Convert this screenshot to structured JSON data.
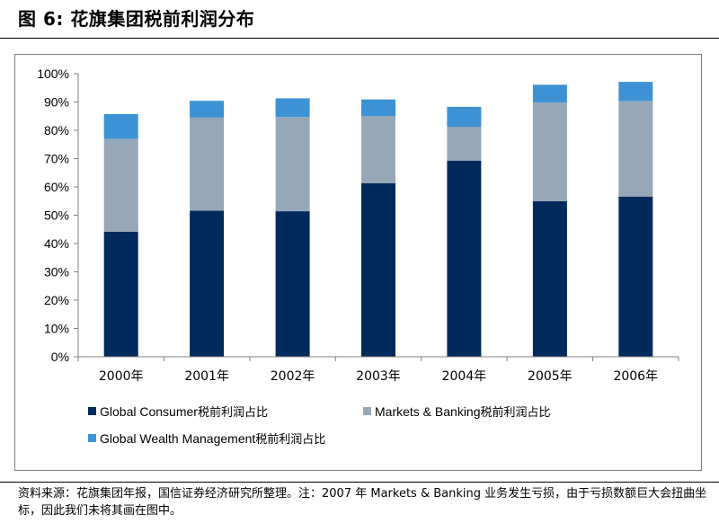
{
  "figure": {
    "title": "图 6:  花旗集团税前利润分布",
    "source": "资料来源：花旗集团年报，国信证券经济研究所整理。注：2007 年 Markets & Banking 业务发生亏损，由于亏损数额巨大会扭曲坐标，因此我们未将其画在图中。"
  },
  "legend": [
    {
      "label": "Global Consumer",
      "suffix": "税前利润占比",
      "color": "#002a5c"
    },
    {
      "label": "Markets & Banking",
      "suffix": "税前利润占比",
      "color": "#96a7b8"
    },
    {
      "label": "Global Wealth Management",
      "suffix": "税前利润占比",
      "color": "#3d92d4"
    }
  ],
  "chart_data": {
    "type": "bar",
    "stacked": true,
    "categories": [
      "2000年",
      "2001年",
      "2002年",
      "2003年",
      "2004年",
      "2005年",
      "2006年"
    ],
    "series": [
      {
        "name": "Global Consumer税前利润占比",
        "color": "#002a5c",
        "values": [
          44.2,
          51.6,
          51.4,
          61.3,
          69.3,
          55.0,
          56.6
        ]
      },
      {
        "name": "Markets & Banking税前利润占比",
        "color": "#96a7b8",
        "values": [
          32.8,
          32.9,
          33.3,
          23.7,
          12.0,
          34.8,
          33.7
        ]
      },
      {
        "name": "Global Wealth Management税前利润占比",
        "color": "#3d92d4",
        "values": [
          8.7,
          5.9,
          6.6,
          5.9,
          7.0,
          6.3,
          6.8
        ]
      }
    ],
    "yticks": [
      "0%",
      "10%",
      "20%",
      "30%",
      "40%",
      "50%",
      "60%",
      "70%",
      "80%",
      "90%",
      "100%"
    ],
    "ylim": [
      0,
      100
    ],
    "xlabel": "",
    "ylabel": "",
    "grid": false,
    "legend_position": "bottom"
  }
}
